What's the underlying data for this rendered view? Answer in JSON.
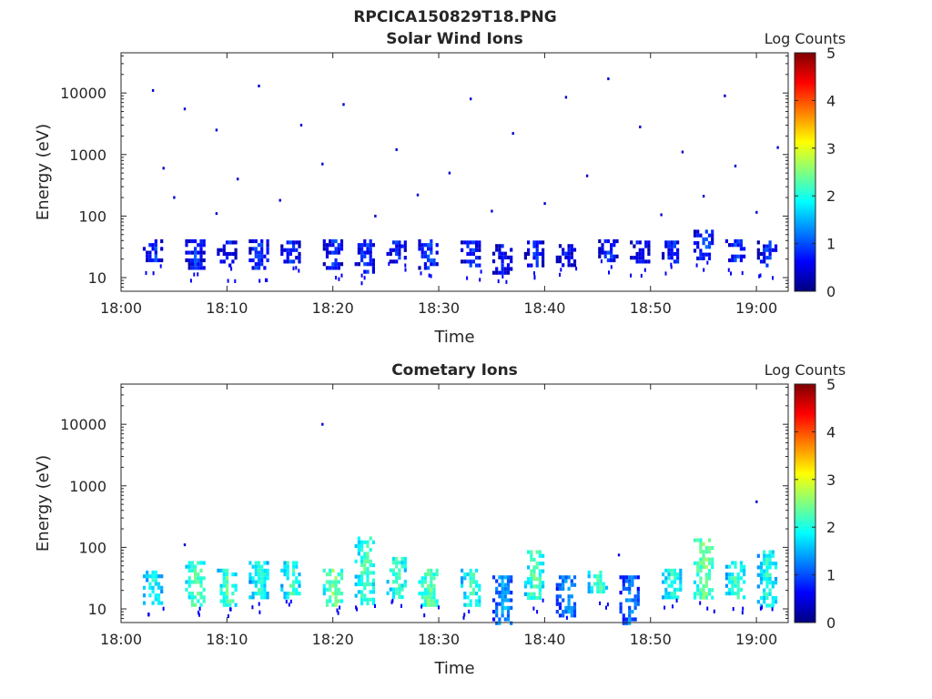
{
  "figure": {
    "title": "RPCICA150829T18.PNG",
    "colormap": [
      "#00007f",
      "#0000ff",
      "#0080ff",
      "#00ffff",
      "#80ff80",
      "#ffff00",
      "#ff8000",
      "#ff0000",
      "#7f0000"
    ]
  },
  "chart_data": [
    {
      "type": "heatmap",
      "title": "Solar Wind Ions",
      "xlabel": "Time",
      "ylabel": "Energy (eV)",
      "xlim": [
        "18:00",
        "19:03"
      ],
      "ylim": [
        6,
        45000
      ],
      "yscale": "log",
      "xticks": [
        "18:00",
        "18:10",
        "18:20",
        "18:30",
        "18:40",
        "18:50",
        "19:00"
      ],
      "yticks": [
        "10",
        "100",
        "1000",
        "10000"
      ],
      "colorbar": {
        "label": "Log Counts",
        "range": [
          0,
          5
        ],
        "ticks": [
          "0",
          "1",
          "2",
          "3",
          "4",
          "5"
        ]
      },
      "grid": false,
      "bursts": [
        {
          "t": "18:03",
          "e_min": 18,
          "e_max": 42,
          "log_counts": 0.9
        },
        {
          "t": "18:07",
          "e_min": 15,
          "e_max": 42,
          "log_counts": 0.9
        },
        {
          "t": "18:10",
          "e_min": 15,
          "e_max": 40,
          "log_counts": 0.8
        },
        {
          "t": "18:13",
          "e_min": 15,
          "e_max": 42,
          "log_counts": 1.0
        },
        {
          "t": "18:16",
          "e_min": 18,
          "e_max": 40,
          "log_counts": 0.9
        },
        {
          "t": "18:20",
          "e_min": 15,
          "e_max": 42,
          "log_counts": 0.9
        },
        {
          "t": "18:23",
          "e_min": 12,
          "e_max": 42,
          "log_counts": 0.9
        },
        {
          "t": "18:26",
          "e_min": 18,
          "e_max": 40,
          "log_counts": 0.8
        },
        {
          "t": "18:29",
          "e_min": 15,
          "e_max": 42,
          "log_counts": 1.0
        },
        {
          "t": "18:33",
          "e_min": 15,
          "e_max": 40,
          "log_counts": 0.9
        },
        {
          "t": "18:36",
          "e_min": 12,
          "e_max": 35,
          "log_counts": 0.7
        },
        {
          "t": "18:39",
          "e_min": 15,
          "e_max": 40,
          "log_counts": 0.8
        },
        {
          "t": "18:42",
          "e_min": 15,
          "e_max": 35,
          "log_counts": 0.7
        },
        {
          "t": "18:46",
          "e_min": 20,
          "e_max": 42,
          "log_counts": 0.9
        },
        {
          "t": "18:49",
          "e_min": 18,
          "e_max": 40,
          "log_counts": 0.8
        },
        {
          "t": "18:52",
          "e_min": 18,
          "e_max": 40,
          "log_counts": 0.9
        },
        {
          "t": "18:55",
          "e_min": 20,
          "e_max": 60,
          "log_counts": 1.0
        },
        {
          "t": "18:58",
          "e_min": 18,
          "e_max": 42,
          "log_counts": 0.9
        },
        {
          "t": "19:01",
          "e_min": 15,
          "e_max": 40,
          "log_counts": 0.9
        }
      ],
      "sparse_points": [
        {
          "t": "18:03",
          "e": 11000
        },
        {
          "t": "18:13",
          "e": 13000
        },
        {
          "t": "18:46",
          "e": 17000
        },
        {
          "t": "18:06",
          "e": 5500
        },
        {
          "t": "18:21",
          "e": 6500
        },
        {
          "t": "18:33",
          "e": 8000
        },
        {
          "t": "18:57",
          "e": 9000
        },
        {
          "t": "18:42",
          "e": 8500
        },
        {
          "t": "18:09",
          "e": 2500
        },
        {
          "t": "18:17",
          "e": 3000
        },
        {
          "t": "18:26",
          "e": 1200
        },
        {
          "t": "18:37",
          "e": 2200
        },
        {
          "t": "18:49",
          "e": 2800
        },
        {
          "t": "18:53",
          "e": 1100
        },
        {
          "t": "19:02",
          "e": 1300
        },
        {
          "t": "18:04",
          "e": 600
        },
        {
          "t": "18:11",
          "e": 400
        },
        {
          "t": "18:19",
          "e": 700
        },
        {
          "t": "18:31",
          "e": 500
        },
        {
          "t": "18:44",
          "e": 450
        },
        {
          "t": "18:58",
          "e": 650
        },
        {
          "t": "18:05",
          "e": 200
        },
        {
          "t": "18:15",
          "e": 180
        },
        {
          "t": "18:28",
          "e": 220
        },
        {
          "t": "18:40",
          "e": 160
        },
        {
          "t": "18:55",
          "e": 210
        },
        {
          "t": "18:09",
          "e": 110
        },
        {
          "t": "18:24",
          "e": 100
        },
        {
          "t": "18:35",
          "e": 120
        },
        {
          "t": "18:51",
          "e": 105
        },
        {
          "t": "19:00",
          "e": 115
        }
      ]
    },
    {
      "type": "heatmap",
      "title": "Cometary Ions",
      "xlabel": "Time",
      "ylabel": "Energy (eV)",
      "xlim": [
        "18:00",
        "19:03"
      ],
      "ylim": [
        6,
        45000
      ],
      "yscale": "log",
      "xticks": [
        "18:00",
        "18:10",
        "18:20",
        "18:30",
        "18:40",
        "18:50",
        "19:00"
      ],
      "yticks": [
        "10",
        "100",
        "1000",
        "10000"
      ],
      "colorbar": {
        "label": "Log Counts",
        "range": [
          0,
          5
        ],
        "ticks": [
          "0",
          "1",
          "2",
          "3",
          "4",
          "5"
        ]
      },
      "grid": false,
      "bursts": [
        {
          "t": "18:03",
          "e_min": 12,
          "e_max": 42,
          "log_counts": 2.0
        },
        {
          "t": "18:07",
          "e_min": 12,
          "e_max": 60,
          "log_counts": 2.4
        },
        {
          "t": "18:10",
          "e_min": 12,
          "e_max": 45,
          "log_counts": 2.3
        },
        {
          "t": "18:13",
          "e_min": 15,
          "e_max": 60,
          "log_counts": 2.1
        },
        {
          "t": "18:16",
          "e_min": 15,
          "e_max": 60,
          "log_counts": 2.2
        },
        {
          "t": "18:20",
          "e_min": 12,
          "e_max": 45,
          "log_counts": 2.5
        },
        {
          "t": "18:23",
          "e_min": 12,
          "e_max": 150,
          "log_counts": 2.3
        },
        {
          "t": "18:26",
          "e_min": 15,
          "e_max": 70,
          "log_counts": 2.2
        },
        {
          "t": "18:29",
          "e_min": 12,
          "e_max": 45,
          "log_counts": 2.4
        },
        {
          "t": "18:33",
          "e_min": 12,
          "e_max": 45,
          "log_counts": 2.2
        },
        {
          "t": "18:36",
          "e_min": 6,
          "e_max": 35,
          "log_counts": 1.5
        },
        {
          "t": "18:39",
          "e_min": 15,
          "e_max": 90,
          "log_counts": 2.3
        },
        {
          "t": "18:42",
          "e_min": 8,
          "e_max": 35,
          "log_counts": 1.4
        },
        {
          "t": "18:45",
          "e_min": 18,
          "e_max": 42,
          "log_counts": 2.2
        },
        {
          "t": "18:48",
          "e_min": 6,
          "e_max": 35,
          "log_counts": 1.3
        },
        {
          "t": "18:52",
          "e_min": 15,
          "e_max": 45,
          "log_counts": 2.1
        },
        {
          "t": "18:55",
          "e_min": 15,
          "e_max": 140,
          "log_counts": 2.5
        },
        {
          "t": "18:58",
          "e_min": 15,
          "e_max": 60,
          "log_counts": 2.2
        },
        {
          "t": "19:01",
          "e_min": 12,
          "e_max": 90,
          "log_counts": 2.1
        }
      ],
      "sparse_points": [
        {
          "t": "18:19",
          "e": 10000
        },
        {
          "t": "19:00",
          "e": 550
        },
        {
          "t": "18:06",
          "e": 110
        },
        {
          "t": "18:47",
          "e": 75
        }
      ]
    }
  ]
}
